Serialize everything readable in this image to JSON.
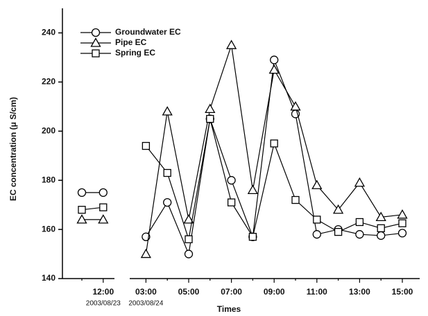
{
  "chart_data": {
    "type": "line",
    "x_label": "Times",
    "y_label": "EC concentration (μ S/cm)",
    "categories": [
      null,
      "12:00",
      "03:00",
      null,
      "05:00",
      null,
      "07:00",
      null,
      "09:00",
      null,
      "11:00",
      null,
      "13:00",
      null,
      "15:00"
    ],
    "x_sublabels": [
      null,
      "2003/08/23",
      "2003/08/24",
      null,
      null,
      null,
      null,
      null,
      null,
      null,
      null,
      null,
      null,
      null,
      null
    ],
    "series": [
      {
        "name": "Groundwater EC",
        "marker": "circle",
        "color": "#000000",
        "values": [
          175,
          175,
          157,
          171,
          150,
          205,
          180,
          157,
          229,
          207,
          158,
          160,
          158,
          157.5,
          158.5
        ]
      },
      {
        "name": "Pipe EC",
        "marker": "triangle",
        "color": "#000000",
        "values": [
          164,
          164,
          150,
          208,
          164,
          209,
          235,
          176,
          225,
          210,
          178,
          168,
          179,
          165,
          166
        ]
      },
      {
        "name": "Spring EC",
        "marker": "square",
        "color": "#000000",
        "values": [
          168,
          169,
          194,
          183,
          156,
          205,
          171,
          157,
          195,
          172,
          164,
          159,
          163,
          160.5,
          162.5
        ]
      }
    ],
    "ylim": [
      140,
      250
    ],
    "yticks": [
      140,
      160,
      180,
      200,
      220,
      240
    ],
    "grid": false,
    "legend": "upper left"
  }
}
